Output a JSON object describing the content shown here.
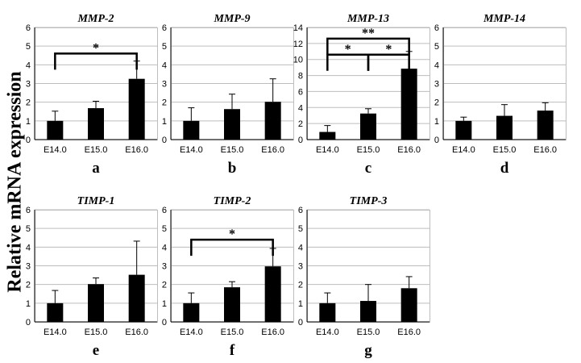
{
  "figure": {
    "ylabel": "Relative mRNA expression"
  },
  "chart_data": [
    {
      "type": "bar",
      "title": "MMP-2",
      "panel_label": "a",
      "categories": [
        "E14.0",
        "E15.0",
        "E16.0"
      ],
      "values": [
        1.0,
        1.68,
        3.25
      ],
      "errors": [
        0.52,
        0.37,
        0.95
      ],
      "ylim": [
        0,
        6
      ],
      "yticks": [
        "0",
        "1",
        "2",
        "3",
        "4",
        "5",
        "6"
      ],
      "significance": [
        {
          "from": 0,
          "to": 2,
          "label": "*",
          "y": 4.6
        }
      ]
    },
    {
      "type": "bar",
      "title": "MMP-9",
      "panel_label": "b",
      "categories": [
        "E14.0",
        "E15.0",
        "E16.0"
      ],
      "values": [
        1.0,
        1.63,
        2.02
      ],
      "errors": [
        0.7,
        0.8,
        1.23
      ],
      "ylim": [
        0,
        6
      ],
      "yticks": [
        "0",
        "1",
        "2",
        "3",
        "4",
        "5",
        "6"
      ],
      "significance": []
    },
    {
      "type": "bar",
      "title": "MMP-13",
      "panel_label": "c",
      "categories": [
        "E14.0",
        "E15.0",
        "E16.0"
      ],
      "values": [
        0.95,
        3.25,
        8.85
      ],
      "errors": [
        0.8,
        0.6,
        2.15
      ],
      "ylim": [
        0,
        14
      ],
      "yticks": [
        "0",
        "2",
        "4",
        "6",
        "8",
        "10",
        "12",
        "14"
      ],
      "significance": [
        {
          "from": 0,
          "to": 2,
          "label": "**",
          "y": 12.6
        },
        {
          "from": 0,
          "to": 1,
          "label": "*",
          "y": 10.6
        },
        {
          "from": 1,
          "to": 2,
          "label": "*",
          "y": 10.6
        }
      ]
    },
    {
      "type": "bar",
      "title": "MMP-14",
      "panel_label": "d",
      "categories": [
        "E14.0",
        "E15.0",
        "E16.0"
      ],
      "values": [
        1.0,
        1.27,
        1.55
      ],
      "errors": [
        0.2,
        0.6,
        0.42
      ],
      "ylim": [
        0,
        6
      ],
      "yticks": [
        "0",
        "1",
        "2",
        "3",
        "4",
        "5",
        "6"
      ],
      "significance": []
    },
    {
      "type": "bar",
      "title": "TIMP-1",
      "panel_label": "e",
      "categories": [
        "E14.0",
        "E15.0",
        "E16.0"
      ],
      "values": [
        1.0,
        2.02,
        2.52
      ],
      "errors": [
        0.68,
        0.33,
        1.8
      ],
      "ylim": [
        0,
        6
      ],
      "yticks": [
        "0",
        "1",
        "2",
        "3",
        "4",
        "5",
        "6"
      ],
      "significance": []
    },
    {
      "type": "bar",
      "title": "TIMP-2",
      "panel_label": "f",
      "categories": [
        "E14.0",
        "E15.0",
        "E16.0"
      ],
      "values": [
        1.0,
        1.85,
        2.97
      ],
      "errors": [
        0.55,
        0.3,
        0.96
      ],
      "ylim": [
        0,
        6
      ],
      "yticks": [
        "0",
        "1",
        "2",
        "3",
        "4",
        "5",
        "6"
      ],
      "significance": [
        {
          "from": 0,
          "to": 2,
          "label": "*",
          "y": 4.4
        }
      ]
    },
    {
      "type": "bar",
      "title": "TIMP-3",
      "panel_label": "g",
      "categories": [
        "E14.0",
        "E15.0",
        "E16.0"
      ],
      "values": [
        1.0,
        1.12,
        1.8
      ],
      "errors": [
        0.55,
        0.88,
        0.62
      ],
      "ylim": [
        0,
        6
      ],
      "yticks": [
        "0",
        "1",
        "2",
        "3",
        "4",
        "5",
        "6"
      ],
      "significance": []
    }
  ]
}
